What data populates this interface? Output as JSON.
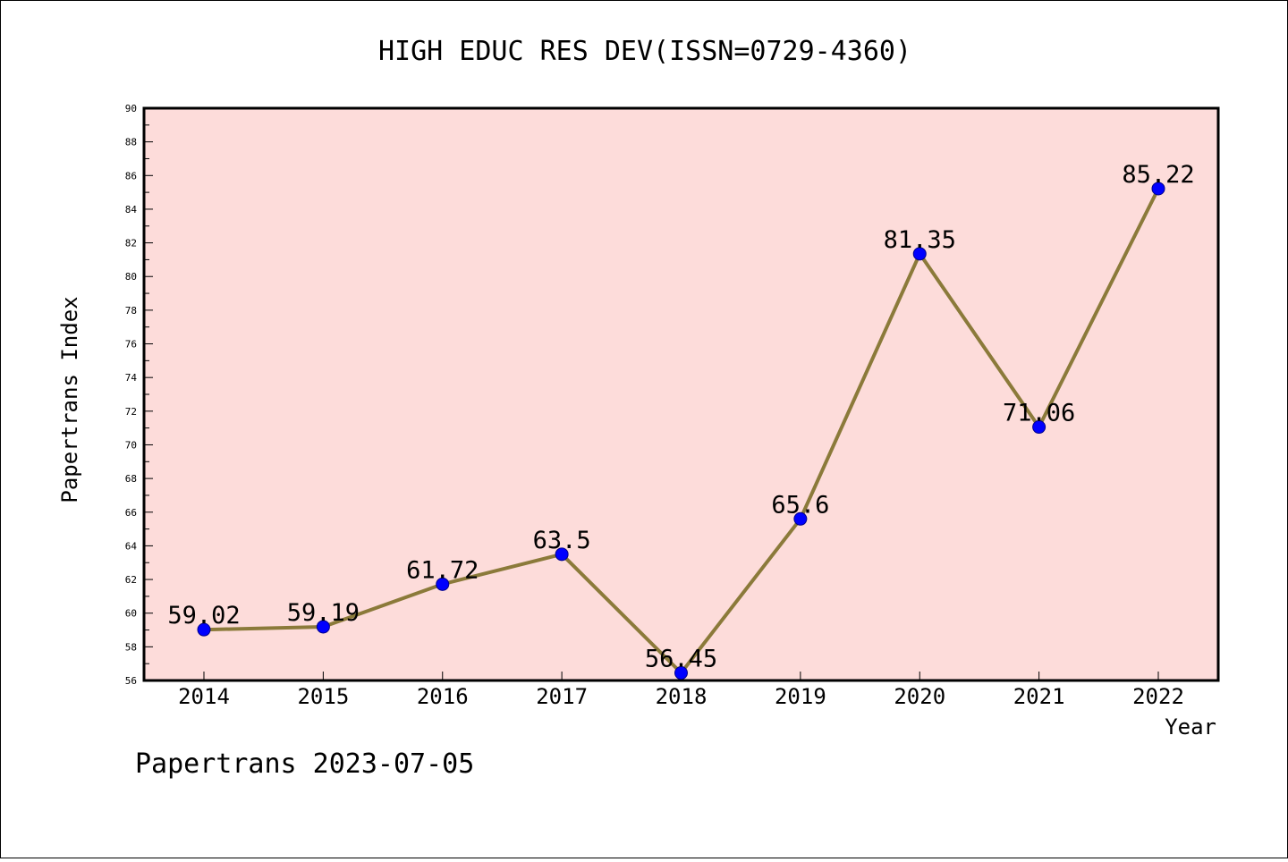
{
  "chart_data": {
    "type": "line",
    "title": "HIGH EDUC RES DEV(ISSN=0729-4360)",
    "xlabel": "Year",
    "ylabel": "Papertrans Index",
    "categories": [
      "2014",
      "2015",
      "2016",
      "2017",
      "2018",
      "2019",
      "2020",
      "2021",
      "2022"
    ],
    "series": [
      {
        "values": [
          59.02,
          59.19,
          61.72,
          63.5,
          56.45,
          65.6,
          81.35,
          71.06,
          85.22
        ],
        "labels": [
          "59.02",
          "59.19",
          "61.72",
          "63.5",
          "56.45",
          "65.6",
          "81.35",
          "71.06",
          "85.22"
        ]
      }
    ],
    "ylim": [
      56,
      90
    ],
    "yticks": [
      "56",
      "58",
      "60",
      "62",
      "64",
      "66",
      "68",
      "70",
      "72",
      "74",
      "76",
      "78",
      "80",
      "82",
      "84",
      "86",
      "88",
      "90"
    ],
    "grid": false,
    "colors": {
      "plot_background": "#fddcda",
      "line": "#8b7a3a",
      "marker": "#0000ff"
    }
  },
  "footer": {
    "text": "Papertrans 2023-07-05"
  }
}
